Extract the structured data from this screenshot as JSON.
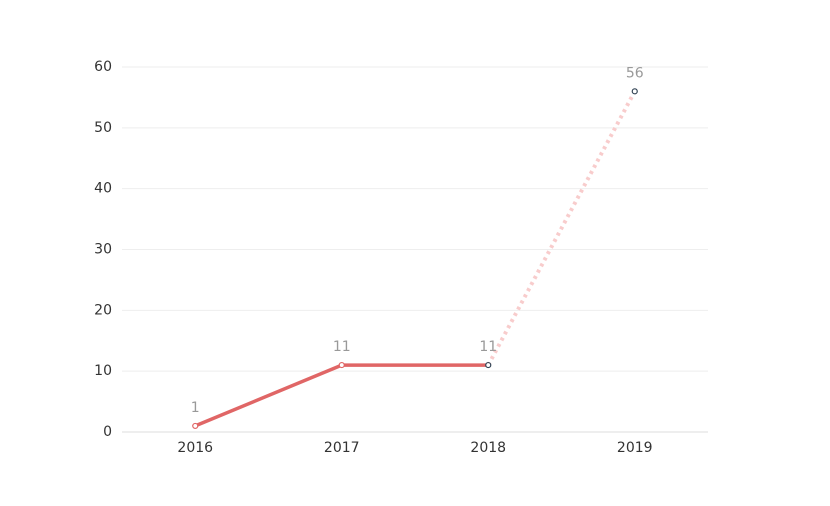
{
  "chart_data": {
    "type": "line",
    "categories": [
      "2016",
      "2017",
      "2018",
      "2019"
    ],
    "series": [
      {
        "values": [
          1,
          11,
          11,
          56
        ],
        "color": "#e06666",
        "dotted_color": "#f8cccc",
        "dotted_segments": [
          2
        ],
        "marker_colors": [
          "#e06666",
          "#e06666",
          "#334455",
          "#334455"
        ]
      }
    ],
    "ylim": [
      0,
      60
    ],
    "yticks": [
      0,
      10,
      20,
      30,
      40,
      50,
      60
    ],
    "grid": true,
    "data_labels": true
  }
}
